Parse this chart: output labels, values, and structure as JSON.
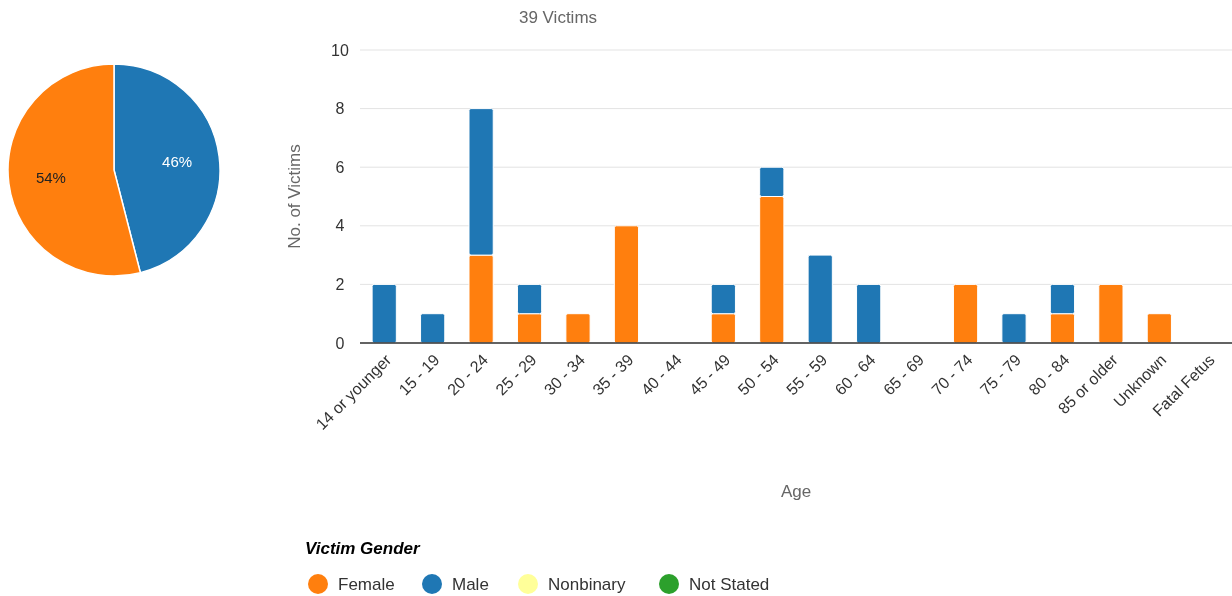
{
  "chart_data": [
    {
      "type": "pie",
      "categories": [
        null,
        null
      ],
      "values": [
        46,
        54
      ],
      "colors": [
        "#1f77b4",
        "#ff7f0e"
      ],
      "data_labels": true,
      "value_labels": [
        "46%",
        "54%"
      ]
    },
    {
      "type": "bar",
      "title": "39 Victims",
      "xlabel": "Age",
      "ylabel": "No. of Victims",
      "legend_title": "Victim Gender",
      "legend": "bottom",
      "stacked": true,
      "grid": "y",
      "categories": [
        "14 or younger",
        "15 - 19",
        "20 - 24",
        "25 - 29",
        "30 - 34",
        "35 - 39",
        "40 - 44",
        "45 - 49",
        "50 - 54",
        "55 - 59",
        "60 - 64",
        "65 - 69",
        "70 - 74",
        "75 - 79",
        "80 - 84",
        "85 or older",
        "Unknown",
        "Fatal Fetus"
      ],
      "ylim": [
        0,
        10
      ],
      "yticks": [
        0,
        2,
        4,
        6,
        8,
        10
      ],
      "series": [
        {
          "name": "Female",
          "color": "#ff7f0e",
          "values": [
            0,
            0,
            3,
            1,
            1,
            4,
            0,
            1,
            5,
            0,
            0,
            0,
            2,
            0,
            1,
            2,
            1,
            0
          ]
        },
        {
          "name": "Male",
          "color": "#1f77b4",
          "values": [
            2,
            1,
            5,
            1,
            0,
            0,
            0,
            1,
            1,
            3,
            2,
            0,
            0,
            1,
            1,
            0,
            0,
            0
          ]
        },
        {
          "name": "Nonbinary",
          "color": "#ffff99",
          "values": [
            0,
            0,
            0,
            0,
            0,
            0,
            0,
            0,
            0,
            0,
            0,
            0,
            0,
            0,
            0,
            0,
            0,
            0
          ]
        },
        {
          "name": "Not Stated",
          "color": "#2ca02c",
          "values": [
            0,
            0,
            0,
            0,
            0,
            0,
            0,
            0,
            0,
            0,
            0,
            0,
            0,
            0,
            0,
            0,
            0,
            0
          ]
        }
      ]
    }
  ]
}
